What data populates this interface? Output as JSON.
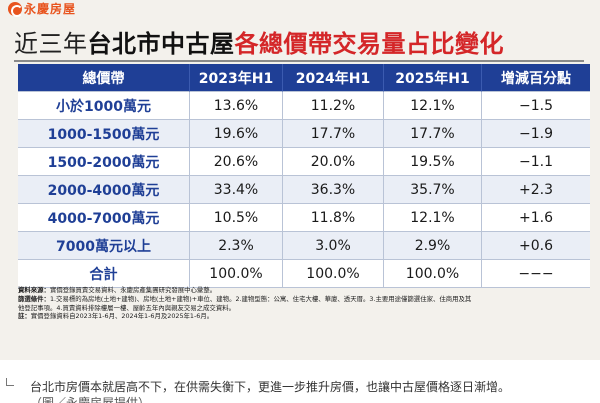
{
  "logo": {
    "text": "永慶房屋",
    "icon": "brand-logo-icon"
  },
  "title": {
    "part1": "近三年",
    "part2": "台北市中古屋",
    "part3": "各總價帶交易量占比變化"
  },
  "table": {
    "headers": [
      "總價帶",
      "2023年H1",
      "2024年H1",
      "2025年H1",
      "增減百分點"
    ],
    "rows": [
      [
        "小於1000萬元",
        "13.6%",
        "11.2%",
        "12.1%",
        "−1.5"
      ],
      [
        "1000-1500萬元",
        "19.6%",
        "17.7%",
        "17.7%",
        "−1.9"
      ],
      [
        "1500-2000萬元",
        "20.6%",
        "20.0%",
        "19.5%",
        "−1.1"
      ],
      [
        "2000-4000萬元",
        "33.4%",
        "36.3%",
        "35.7%",
        "+2.3"
      ],
      [
        "4000-7000萬元",
        "10.5%",
        "11.8%",
        "12.1%",
        "+1.6"
      ],
      [
        "7000萬元以上",
        "2.3%",
        "3.0%",
        "2.9%",
        "+0.6"
      ],
      [
        "合計",
        "100.0%",
        "100.0%",
        "100.0%",
        "−−−"
      ]
    ]
  },
  "notes": {
    "source_label": "資料來源：",
    "source_text": "實價登錄買賣交易資料、永慶房產集團研究發展中心彙整。",
    "filter_label": "篩選條件：",
    "filter_text": "1.交易標的為房地(土地+建物)、房地(土地+建物)+車位、建物。2.建物型態：公寓、住宅大樓、華廈、透天厝。3.主要用途僅篩選住家、住商用及其",
    "filter_text2": "他登記事項。4.買賣資料排除樓層一樓、屋齡五年內與親友交易之成交資料。",
    "note_label": "註：",
    "note_text": "實價登錄資料自2023年1-6月、2024年1-6月及2025年1-6月。"
  },
  "caption": {
    "line1": "台北市房價本就居高不下，在供需失衡下，更進一步推升房價，也讓中古屋價格逐日漸增。",
    "line2": "（圖／永慶房屋提供）"
  }
}
